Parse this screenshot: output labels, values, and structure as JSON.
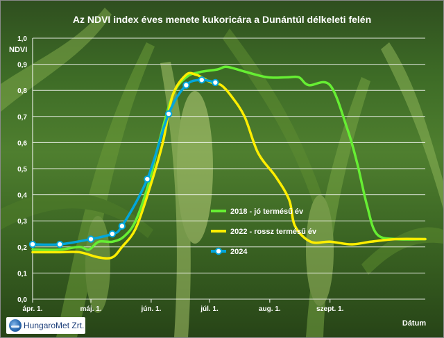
{
  "chart_data": {
    "type": "line",
    "title": "Az NDVI index éves menete kukoricára a Dunántúl délkeleti felén",
    "xlabel": "Dátum",
    "ylabel": "NDVI",
    "ylim": [
      0,
      1
    ],
    "yticks": [
      "0,0",
      "0,1",
      "0,2",
      "0,3",
      "0,4",
      "0,5",
      "0,6",
      "0,7",
      "0,8",
      "0,9",
      "1,0"
    ],
    "xlim": [
      "04-01",
      "10-20"
    ],
    "xticks": [
      {
        "date": "04-01",
        "label": "ápr. 1."
      },
      {
        "date": "05-01",
        "label": "máj. 1."
      },
      {
        "date": "06-01",
        "label": "jún. 1."
      },
      {
        "date": "07-01",
        "label": "júl. 1."
      },
      {
        "date": "08-01",
        "label": "aug. 1."
      },
      {
        "date": "09-01",
        "label": "szept. 1."
      }
    ],
    "grid": true,
    "legend_position": "right",
    "series": [
      {
        "name": "2018 - jó termésű év",
        "color": "#66ee33",
        "marker": false,
        "points": [
          [
            "04-01",
            0.19
          ],
          [
            "04-15",
            0.19
          ],
          [
            "04-25",
            0.2
          ],
          [
            "04-30",
            0.19
          ],
          [
            "05-05",
            0.22
          ],
          [
            "05-12",
            0.22
          ],
          [
            "05-18",
            0.24
          ],
          [
            "05-24",
            0.3
          ],
          [
            "05-31",
            0.45
          ],
          [
            "06-05",
            0.6
          ],
          [
            "06-12",
            0.78
          ],
          [
            "06-19",
            0.85
          ],
          [
            "06-26",
            0.87
          ],
          [
            "07-05",
            0.88
          ],
          [
            "07-10",
            0.89
          ],
          [
            "07-20",
            0.87
          ],
          [
            "07-31",
            0.85
          ],
          [
            "08-10",
            0.85
          ],
          [
            "08-16",
            0.85
          ],
          [
            "08-21",
            0.82
          ],
          [
            "09-01",
            0.82
          ],
          [
            "09-10",
            0.65
          ],
          [
            "09-15",
            0.52
          ],
          [
            "09-20",
            0.36
          ],
          [
            "09-25",
            0.25
          ],
          [
            "10-05",
            0.23
          ],
          [
            "10-20",
            0.23
          ]
        ]
      },
      {
        "name": "2022 - rossz termésű év",
        "color": "#ffee00",
        "marker": false,
        "points": [
          [
            "04-01",
            0.18
          ],
          [
            "04-15",
            0.18
          ],
          [
            "04-25",
            0.18
          ],
          [
            "05-05",
            0.16
          ],
          [
            "05-12",
            0.16
          ],
          [
            "05-17",
            0.2
          ],
          [
            "05-24",
            0.27
          ],
          [
            "05-31",
            0.42
          ],
          [
            "06-07",
            0.6
          ],
          [
            "06-12",
            0.78
          ],
          [
            "06-19",
            0.86
          ],
          [
            "06-24",
            0.86
          ],
          [
            "06-27",
            0.85
          ],
          [
            "07-02",
            0.83
          ],
          [
            "07-07",
            0.82
          ],
          [
            "07-12",
            0.78
          ],
          [
            "07-19",
            0.7
          ],
          [
            "07-26",
            0.56
          ],
          [
            "08-04",
            0.47
          ],
          [
            "08-11",
            0.38
          ],
          [
            "08-14",
            0.28
          ],
          [
            "08-22",
            0.22
          ],
          [
            "09-01",
            0.22
          ],
          [
            "09-12",
            0.21
          ],
          [
            "09-22",
            0.22
          ],
          [
            "10-05",
            0.23
          ],
          [
            "10-20",
            0.23
          ]
        ]
      },
      {
        "name": "2024",
        "color": "#00a6dc",
        "marker": true,
        "points": [
          [
            "04-01",
            0.21
          ],
          [
            "04-15",
            0.21
          ],
          [
            "05-01",
            0.23
          ],
          [
            "05-12",
            0.25
          ],
          [
            "05-17",
            0.28
          ],
          [
            "05-30",
            0.46
          ],
          [
            "06-10",
            0.71
          ],
          [
            "06-19",
            0.82
          ],
          [
            "06-27",
            0.84
          ],
          [
            "07-04",
            0.83
          ]
        ]
      }
    ]
  },
  "logo": {
    "text": "HungaroMet Zrt."
  }
}
